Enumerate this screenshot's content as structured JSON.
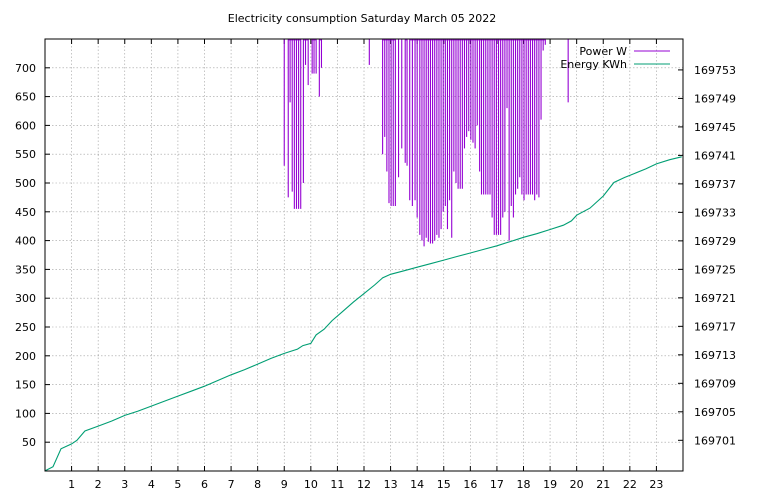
{
  "chart_data": {
    "type": "line",
    "title": "Electricity consumption Saturday March 05 2022",
    "grid": true,
    "legend_position": "top-right",
    "x_ticks": [
      1,
      2,
      3,
      4,
      5,
      6,
      7,
      8,
      9,
      10,
      11,
      12,
      13,
      14,
      15,
      16,
      17,
      18,
      19,
      20,
      21,
      22,
      23
    ],
    "xlim": [
      0,
      24
    ],
    "y_left_ticks": [
      50,
      100,
      150,
      200,
      250,
      300,
      350,
      400,
      450,
      500,
      550,
      600,
      650,
      700
    ],
    "ylim_left": [
      0,
      750
    ],
    "y_right_ticks": [
      169701,
      169705,
      169709,
      169713,
      169717,
      169721,
      169725,
      169729,
      169733,
      169737,
      169741,
      169745,
      169749,
      169753
    ],
    "ylim_right": [
      169696.69,
      169757.34
    ],
    "series": [
      {
        "name": "Power W",
        "color": "#9400d3",
        "axis": "left",
        "segments": [
          [
            9.0,
            530
          ],
          [
            9.15,
            475
          ],
          [
            9.22,
            640
          ],
          [
            9.3,
            485
          ],
          [
            9.38,
            455
          ],
          [
            9.46,
            455
          ],
          [
            9.54,
            455
          ],
          [
            9.62,
            455
          ],
          [
            9.72,
            500
          ],
          [
            9.8,
            705
          ],
          [
            9.9,
            670
          ],
          [
            10.05,
            690
          ],
          [
            10.12,
            690
          ],
          [
            10.2,
            690
          ],
          [
            10.32,
            650
          ],
          [
            10.4,
            700
          ],
          [
            12.2,
            705
          ],
          [
            12.7,
            550
          ],
          [
            12.78,
            580
          ],
          [
            12.86,
            520
          ],
          [
            12.94,
            465
          ],
          [
            13.02,
            460
          ],
          [
            13.1,
            460
          ],
          [
            13.18,
            460
          ],
          [
            13.3,
            510
          ],
          [
            13.42,
            560
          ],
          [
            13.55,
            535
          ],
          [
            13.62,
            530
          ],
          [
            13.72,
            470
          ],
          [
            13.82,
            460
          ],
          [
            13.92,
            470
          ],
          [
            14.0,
            440
          ],
          [
            14.1,
            410
          ],
          [
            14.18,
            400
          ],
          [
            14.26,
            390
          ],
          [
            14.34,
            405
          ],
          [
            14.42,
            398
          ],
          [
            14.5,
            395
          ],
          [
            14.58,
            395
          ],
          [
            14.66,
            400
          ],
          [
            14.74,
            410
          ],
          [
            14.82,
            405
          ],
          [
            14.9,
            420
          ],
          [
            14.98,
            450
          ],
          [
            15.06,
            460
          ],
          [
            15.14,
            420
          ],
          [
            15.22,
            470
          ],
          [
            15.3,
            405
          ],
          [
            15.38,
            520
          ],
          [
            15.46,
            500
          ],
          [
            15.54,
            490
          ],
          [
            15.62,
            490
          ],
          [
            15.7,
            490
          ],
          [
            15.78,
            560
          ],
          [
            15.86,
            580
          ],
          [
            15.94,
            590
          ],
          [
            16.02,
            575
          ],
          [
            16.1,
            570
          ],
          [
            16.18,
            560
          ],
          [
            16.26,
            600
          ],
          [
            16.35,
            520
          ],
          [
            16.42,
            480
          ],
          [
            16.5,
            480
          ],
          [
            16.58,
            480
          ],
          [
            16.66,
            480
          ],
          [
            16.74,
            480
          ],
          [
            16.82,
            440
          ],
          [
            16.9,
            410
          ],
          [
            16.98,
            410
          ],
          [
            17.06,
            410
          ],
          [
            17.14,
            410
          ],
          [
            17.22,
            440
          ],
          [
            17.3,
            450
          ],
          [
            17.38,
            630
          ],
          [
            17.46,
            400
          ],
          [
            17.54,
            460
          ],
          [
            17.62,
            440
          ],
          [
            17.7,
            480
          ],
          [
            17.78,
            490
          ],
          [
            17.86,
            510
          ],
          [
            17.94,
            480
          ],
          [
            18.02,
            470
          ],
          [
            18.1,
            480
          ],
          [
            18.18,
            480
          ],
          [
            18.26,
            480
          ],
          [
            18.34,
            480
          ],
          [
            18.42,
            470
          ],
          [
            18.5,
            480
          ],
          [
            18.58,
            475
          ],
          [
            18.66,
            610
          ],
          [
            18.74,
            730
          ],
          [
            18.82,
            740
          ],
          [
            19.68,
            640
          ]
        ]
      },
      {
        "name": "Energy KWh",
        "color": "#009e73",
        "axis": "right",
        "points": [
          [
            0.0,
            169696.7
          ],
          [
            0.3,
            169697.3
          ],
          [
            0.6,
            169699.8
          ],
          [
            1.0,
            169700.5
          ],
          [
            1.2,
            169701.0
          ],
          [
            1.5,
            169702.3
          ],
          [
            2.0,
            169703.0
          ],
          [
            2.5,
            169703.7
          ],
          [
            3.0,
            169704.5
          ],
          [
            3.5,
            169705.1
          ],
          [
            4.0,
            169705.8
          ],
          [
            4.5,
            169706.5
          ],
          [
            5.0,
            169707.2
          ],
          [
            5.5,
            169707.9
          ],
          [
            6.0,
            169708.6
          ],
          [
            6.5,
            169709.4
          ],
          [
            7.0,
            169710.2
          ],
          [
            7.5,
            169710.9
          ],
          [
            8.0,
            169711.7
          ],
          [
            8.5,
            169712.5
          ],
          [
            9.0,
            169713.2
          ],
          [
            9.5,
            169713.8
          ],
          [
            9.7,
            169714.3
          ],
          [
            10.0,
            169714.6
          ],
          [
            10.2,
            169715.8
          ],
          [
            10.5,
            169716.6
          ],
          [
            10.8,
            169717.8
          ],
          [
            11.2,
            169719.1
          ],
          [
            11.6,
            169720.4
          ],
          [
            12.0,
            169721.6
          ],
          [
            12.4,
            169722.8
          ],
          [
            12.7,
            169723.8
          ],
          [
            13.0,
            169724.3
          ],
          [
            13.5,
            169724.8
          ],
          [
            14.0,
            169725.3
          ],
          [
            14.5,
            169725.8
          ],
          [
            15.0,
            169726.3
          ],
          [
            15.5,
            169726.8
          ],
          [
            16.0,
            169727.3
          ],
          [
            16.5,
            169727.8
          ],
          [
            17.0,
            169728.3
          ],
          [
            17.5,
            169728.9
          ],
          [
            18.0,
            169729.5
          ],
          [
            18.5,
            169730.0
          ],
          [
            19.0,
            169730.6
          ],
          [
            19.5,
            169731.2
          ],
          [
            19.8,
            169731.8
          ],
          [
            20.0,
            169732.6
          ],
          [
            20.5,
            169733.6
          ],
          [
            21.0,
            169735.3
          ],
          [
            21.4,
            169737.2
          ],
          [
            21.8,
            169737.9
          ],
          [
            22.2,
            169738.5
          ],
          [
            22.6,
            169739.1
          ],
          [
            23.0,
            169739.8
          ],
          [
            23.5,
            169740.4
          ],
          [
            23.95,
            169740.8
          ]
        ]
      }
    ]
  }
}
